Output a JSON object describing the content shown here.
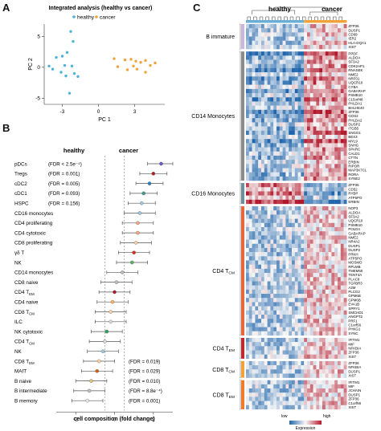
{
  "panels": {
    "a": {
      "letter": "A",
      "title": "Integrated analysis (healthy vs cancer)",
      "legend": [
        {
          "label": "healthy",
          "color": "#4fb3d9"
        },
        {
          "label": "cancer",
          "color": "#f0a33b"
        }
      ],
      "xlabel": "PC 1",
      "ylabel": "PC 2",
      "x_ticks": [
        "-3",
        "0",
        "3"
      ],
      "y_ticks": [
        "5",
        "0",
        "-5"
      ]
    },
    "b": {
      "letter": "B",
      "group_healthy": "healthy",
      "group_cancer": "cancer",
      "xlabel": "cell composition (fold change)",
      "x_ticks": [
        "-2",
        "0",
        "2"
      ]
    },
    "c": {
      "letter": "C",
      "group_healthy": "healthy",
      "group_cancer": "cancer",
      "legend_low": "low",
      "legend_high": "high",
      "legend_title": "Expression"
    }
  },
  "chart_data": [
    {
      "type": "scatter",
      "title": "Integrated analysis (healthy vs cancer)",
      "xlabel": "PC 1",
      "ylabel": "PC 2",
      "xlim": [
        -4.5,
        5.5
      ],
      "ylim": [
        -6,
        7
      ],
      "series": [
        {
          "name": "healthy",
          "color": "#4fb3d9",
          "points": [
            [
              -2.3,
              5.8
            ],
            [
              -2.1,
              4.2
            ],
            [
              -2.6,
              2.4
            ],
            [
              -3.0,
              1.8
            ],
            [
              -3.5,
              1.6
            ],
            [
              -4.1,
              0.2
            ],
            [
              -2.8,
              0.3
            ],
            [
              -2.2,
              0.2
            ],
            [
              -3.1,
              -0.8
            ],
            [
              -2.0,
              -1.0
            ],
            [
              -2.7,
              -1.4
            ],
            [
              -2.4,
              -4.2
            ],
            [
              -1.7,
              -1.5
            ],
            [
              -3.8,
              -0.3
            ]
          ]
        },
        {
          "name": "cancer",
          "color": "#f0a33b",
          "points": [
            [
              1.3,
              1.4
            ],
            [
              2.2,
              1.2
            ],
            [
              2.7,
              1.3
            ],
            [
              3.1,
              1.0
            ],
            [
              3.5,
              0.8
            ],
            [
              3.9,
              1.1
            ],
            [
              4.3,
              0.3
            ],
            [
              4.7,
              0.7
            ],
            [
              2.4,
              -0.4
            ],
            [
              3.2,
              -0.3
            ],
            [
              3.9,
              -0.8
            ],
            [
              1.6,
              0.1
            ],
            [
              2.9,
              0.2
            ]
          ]
        }
      ]
    },
    {
      "type": "scatter",
      "xlabel": "cell composition (fold change)",
      "xlim": [
        -3.0,
        3.0
      ],
      "categories": [
        "pDCs",
        "Tregs",
        "cDC2",
        "cDC1",
        "HSPC",
        "CD16 monocytes",
        "CD4 proliferating",
        "CD4 cytotoxic",
        "CD8 proliferating",
        "γδ T",
        "NK",
        "CD14 monocytes",
        "CD8 naive",
        "CD4 T_EM",
        "CD4 naive",
        "CD8 T_CM",
        "ILC",
        "NK cytotoxic",
        "CD4 T_CM",
        "NK",
        "CD8 T_EM",
        "MAIT",
        "B naive",
        "B intermediate",
        "B memory"
      ],
      "estimates": [
        2.4,
        2.0,
        1.8,
        1.5,
        1.4,
        1.3,
        1.2,
        1.2,
        1.1,
        1.0,
        0.9,
        0.4,
        0.1,
        0.0,
        -0.1,
        -0.2,
        -0.2,
        -0.4,
        -0.5,
        -0.6,
        -0.8,
        -0.9,
        -1.2,
        -1.3,
        -1.4
      ],
      "lower": [
        1.7,
        1.3,
        1.1,
        0.8,
        0.7,
        0.5,
        0.4,
        0.4,
        0.3,
        0.2,
        0.1,
        -0.4,
        -0.7,
        -0.8,
        -0.9,
        -1.0,
        -1.0,
        -1.2,
        -1.3,
        -1.4,
        -1.6,
        -1.7,
        -2.0,
        -2.1,
        -2.2
      ],
      "upper": [
        3.0,
        2.7,
        2.5,
        2.2,
        2.1,
        2.1,
        2.0,
        2.0,
        1.9,
        1.8,
        1.7,
        1.2,
        0.9,
        0.8,
        0.7,
        0.6,
        0.6,
        0.4,
        0.3,
        0.2,
        0.0,
        -0.1,
        -0.4,
        -0.5,
        -0.6
      ],
      "colors": [
        "#6a5acd",
        "#b22222",
        "#2f7fc1",
        "#3a9e8f",
        "#9ecae1",
        "#9ecae1",
        "#f4a582",
        "#f4a582",
        "#fdd0a2",
        "#d7301f",
        "#5aae61",
        "#bdbdbd",
        "#bdbdbd",
        "#b2182b",
        "#fdae61",
        "#fdd0a2",
        "#d9d9d9",
        "#2ca25f",
        "#d9d9d9",
        "#9ecae1",
        "#fdd0a2",
        "#d95f0e",
        "#dfc27d",
        "#bdbdbd",
        "#e6e6e6"
      ],
      "annotations": [
        {
          "category": "pDCs",
          "side": "left",
          "text": "(FDR < 2.5e⁻⁴)"
        },
        {
          "category": "Tregs",
          "side": "left",
          "text": "(FDR = 0.001)"
        },
        {
          "category": "cDC2",
          "side": "left",
          "text": "(FDR = 0.005)"
        },
        {
          "category": "cDC1",
          "side": "left",
          "text": "(FDR = 0.093)"
        },
        {
          "category": "HSPC",
          "side": "left",
          "text": "(FDR = 0.156)"
        },
        {
          "category": "CD8 T_EM",
          "side": "right",
          "text": "(FDR = 0.019)"
        },
        {
          "category": "MAIT",
          "side": "right",
          "text": "(FDR = 0.029)"
        },
        {
          "category": "B naive",
          "side": "right",
          "text": "(FDR = 0.010)"
        },
        {
          "category": "B intermediate",
          "side": "right",
          "text": "(FDR = 8.8e⁻⁴)"
        },
        {
          "category": "B memory",
          "side": "right",
          "text": "(FDR = 0.001)"
        }
      ]
    },
    {
      "type": "heatmap",
      "groups": [
        {
          "label": "B immature",
          "color": "#c9b8dc",
          "genes": [
            "ZFP36",
            "DUSP1",
            "CD69",
            "IER2",
            "HLA-DQA1",
            "XIST"
          ]
        },
        {
          "label": "CD14 Monocytes",
          "color": "#8c8c8c",
          "genes": [
            "PPDF",
            "ALDOA",
            "SF3A2",
            "CDK2AP1",
            "RNASEK",
            "NME2",
            "NRF01",
            "UQCR10",
            "CYBA",
            "GABARAP",
            "PSMB10",
            "C15orf48",
            "PHLDA1",
            "BHLHE40",
            "ZFP36",
            "GOS2",
            "PHLDA2",
            "DUSP2",
            "ITGB5",
            "SNGG1",
            "BEX3",
            "MYL9",
            "SNHG",
            "SPARC",
            "CALD1",
            "CTTN",
            "ERBIN",
            "RIPOR",
            "MAP3K7CL",
            "RORA",
            "SYNE2"
          ]
        },
        {
          "label": "CD16 Monocytes",
          "color": "#6d8f9c",
          "genes": [
            "ZFP36",
            "CD52",
            "RYBP",
            "ATP5PO",
            "ERBIN"
          ]
        },
        {
          "label": "CD4 T_CM",
          "color": "#e8663d",
          "genes": [
            "NOP3",
            "ALDOA",
            "SF3A2",
            "UQCR10",
            "PSMB10",
            "POLD4",
            "GABARAP",
            "NME2",
            "NR4A2",
            "DUSP1",
            "DUSP2",
            "PRKH",
            "ATP5PO",
            "MOSMO",
            "RPLMB",
            "TMEM50",
            "TENT4A",
            "PLAC8",
            "TGFBR3",
            "A2M",
            "PLCG2",
            "GPM6B",
            "GPM6B",
            "EVA1B",
            "SPRY1",
            "SMCHD1",
            "ANGPT2",
            "PRF1",
            "C1orf56",
            "PHKG1",
            "SYNC"
          ]
        },
        {
          "label": "CD4 T_EM",
          "color": "#c0282e",
          "genes": [
            "IFITM1",
            "MIF",
            "NFKBIA",
            "ZFP36",
            "XIST"
          ]
        },
        {
          "label": "CD8 T_CM",
          "color": "#f0a33b",
          "genes": [
            "ZFP36",
            "NFKBIA",
            "DUSP1",
            "XIST"
          ]
        },
        {
          "label": "CD8 T_EM",
          "color": "#f07b2d",
          "genes": [
            "IFITM1",
            "MIF",
            "JCHAIN",
            "DUSP1",
            "ZFP36",
            "C1orf56",
            "XIST"
          ]
        }
      ],
      "columns_healthy": 19,
      "columns_cancer": 14
    }
  ]
}
